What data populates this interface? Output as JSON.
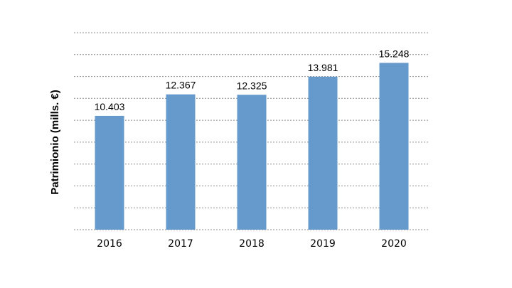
{
  "chart_data": {
    "type": "bar",
    "categories": [
      "2016",
      "2017",
      "2018",
      "2019",
      "2020"
    ],
    "values": [
      10403,
      12367,
      12325,
      13981,
      15248
    ],
    "data_labels": [
      "10.403",
      "12.367",
      "12.325",
      "13.981",
      "15.248"
    ],
    "title": "",
    "xlabel": "",
    "ylabel": "Patrimionio (mills. €)",
    "ylim": [
      0,
      18000
    ],
    "grid": true,
    "bar_color": "#6699cc",
    "grid_color": "#8c8c8c"
  }
}
